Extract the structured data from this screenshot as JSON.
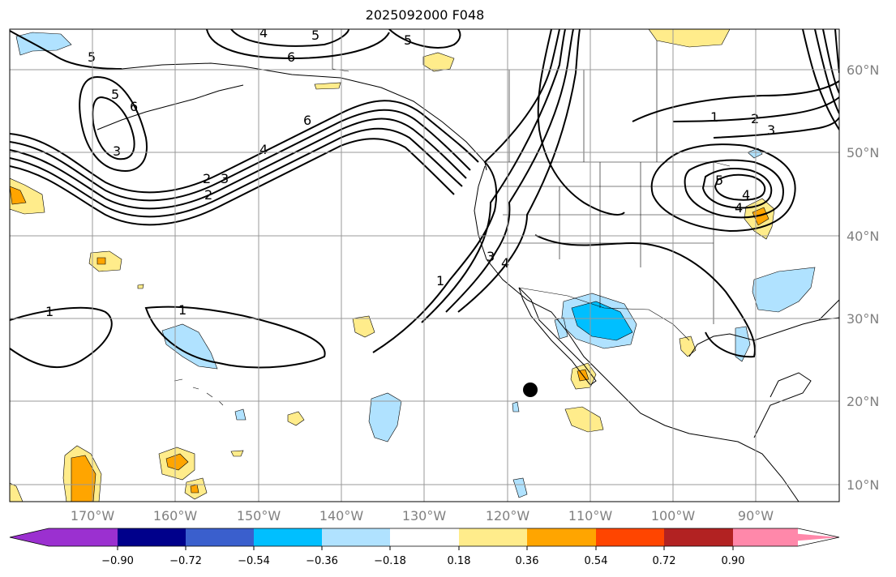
{
  "title": "2025092000 F048",
  "map": {
    "lon_range": [
      -180,
      -80
    ],
    "lat_range": [
      8,
      65
    ],
    "gridlines": true,
    "lat_labels": [
      "60°N",
      "50°N",
      "40°N",
      "30°N",
      "20°N",
      "10°N"
    ],
    "lon_labels": [
      "170°W",
      "160°W",
      "150°W",
      "140°W",
      "130°W",
      "120°W",
      "110°W",
      "100°W",
      "90°W"
    ],
    "marker": "storm-position-dot",
    "contour_labels": [
      "5",
      "5",
      "6",
      "4",
      "5",
      "6",
      "5",
      "3",
      "2",
      "3",
      "4",
      "6",
      "2",
      "1",
      "1",
      "1",
      "3",
      "4",
      "1",
      "2",
      "3",
      "5",
      "4",
      "4"
    ]
  },
  "colorbar": {
    "ticks": [
      "−0.90",
      "−0.72",
      "−0.54",
      "−0.36",
      "−0.18",
      "0.18",
      "0.36",
      "0.54",
      "0.72",
      "0.90"
    ],
    "colors": [
      "#9b30d0",
      "#00008b",
      "#3a5fcd",
      "#00bfff",
      "#b0e2ff",
      "#ffffff",
      "#ffec8b",
      "#ffa500",
      "#ff4500",
      "#b22222",
      "#ff88aa"
    ]
  }
}
